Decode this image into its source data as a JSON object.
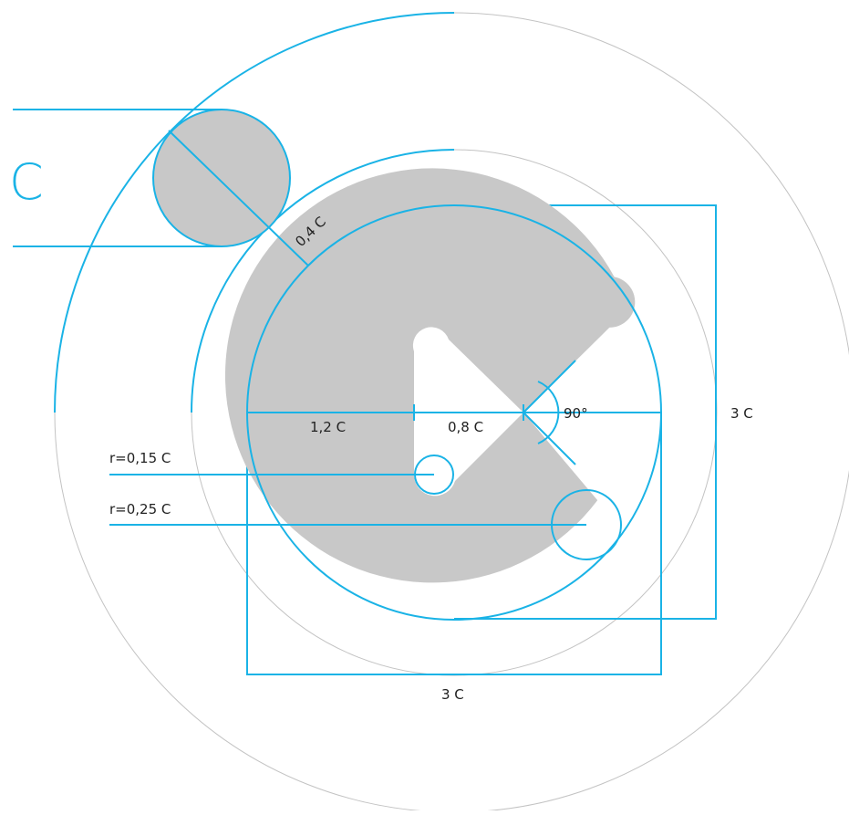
{
  "colors": {
    "accent": "#1ab3e6",
    "fill": "#c8c8c8",
    "guide": "#c3c3c3",
    "text": "#222222"
  },
  "labels": {
    "unit": "C",
    "clearspace": "0,4 C",
    "radius_outer": "1,2 C",
    "radius_inner": "0,8 C",
    "angle": "90°",
    "height": "3 C",
    "width": "3 C",
    "corner_small": "r=0,15 C",
    "corner_large": "r=0,25 C"
  }
}
